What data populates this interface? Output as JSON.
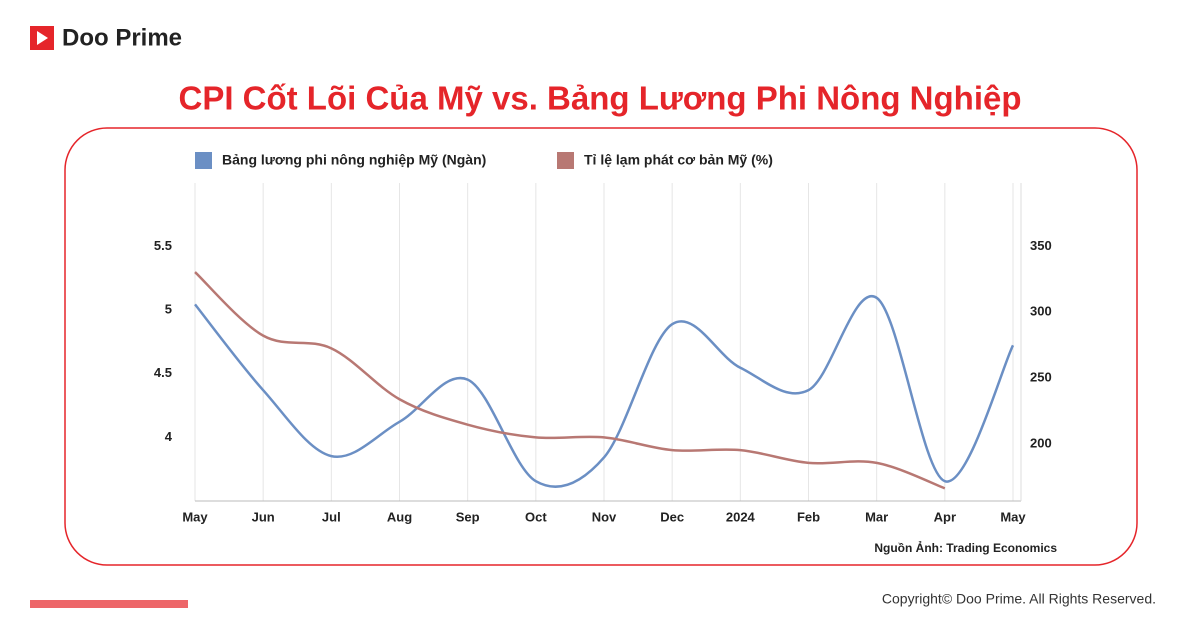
{
  "brand": "Doo Prime",
  "copyright": "Copyright© Doo Prime. All Rights Reserved.",
  "chart_data": {
    "type": "line",
    "title": "CPI Cốt Lõi Của Mỹ vs. Bảng Lương Phi Nông Nghiệp",
    "source": "Nguồn Ảnh: Trading Economics",
    "categories": [
      "May",
      "Jun",
      "Jul",
      "Aug",
      "Sep",
      "Oct",
      "Nov",
      "Dec",
      "2024",
      "Feb",
      "Mar",
      "Apr",
      "May"
    ],
    "series": [
      {
        "name": "Bảng lương phi nông nghiệp Mỹ (Ngàn)",
        "color": "#6b8fc4",
        "axis": "y2",
        "values": [
          306,
          241,
          191,
          217,
          249,
          172,
          190,
          291,
          258,
          241,
          311,
          172,
          275
        ]
      },
      {
        "name": "Tỉ lệ lạm phát cơ bản Mỹ (%)",
        "color": "#b87873",
        "values": [
          5.3,
          4.8,
          4.7,
          4.3,
          4.1,
          4.0,
          4.0,
          3.9,
          3.9,
          3.8,
          3.8,
          3.6,
          null
        ]
      }
    ],
    "ylim": [
      3.5,
      6
    ],
    "yticks": [
      4,
      4.5,
      5,
      5.5
    ],
    "y2lim": [
      157,
      398
    ],
    "y2ticks": [
      200,
      250,
      300,
      350
    ],
    "grid": true,
    "legend": "top"
  }
}
